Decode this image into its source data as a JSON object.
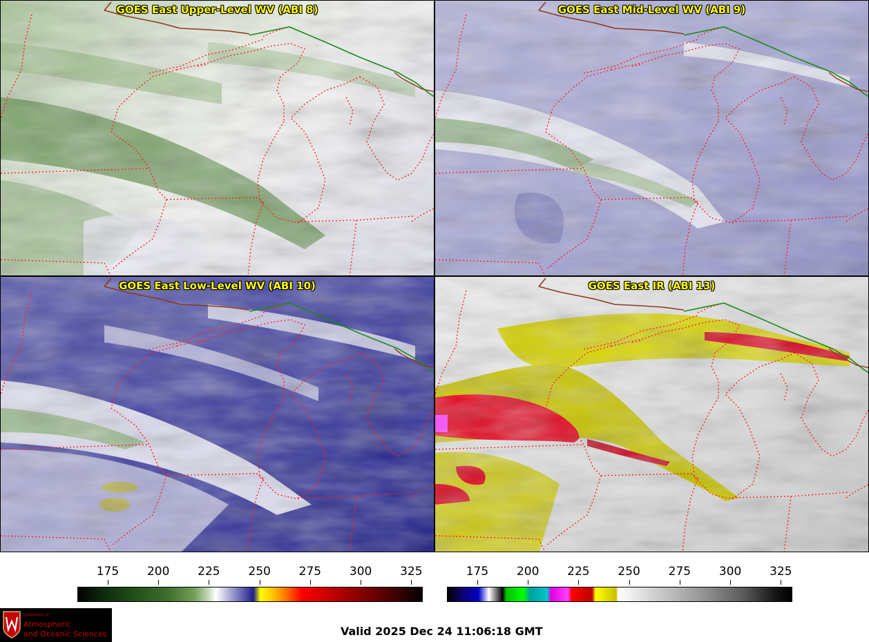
{
  "panels": [
    {
      "title": "GOES East Upper-Level WV (ABI 8)",
      "band": "ABI 8",
      "theme": "green-white"
    },
    {
      "title": "GOES East Mid-Level WV (ABI 9)",
      "band": "ABI 9",
      "theme": "white-purple"
    },
    {
      "title": "GOES East Low-Level WV (ABI 10)",
      "band": "ABI 10",
      "theme": "blue-white"
    },
    {
      "title": "GOES East IR (ABI 13)",
      "band": "ABI 13",
      "theme": "gray-yellow-red"
    }
  ],
  "colorbars": {
    "wv": {
      "ticks": [
        "175",
        "200",
        "225",
        "250",
        "275",
        "300",
        "325"
      ],
      "min": 160,
      "max": 330
    },
    "ir": {
      "ticks": [
        "175",
        "200",
        "225",
        "250",
        "275",
        "300",
        "325"
      ],
      "min": 160,
      "max": 330
    }
  },
  "logo": {
    "dept": "Department of",
    "line1": "Atmospheric",
    "line2": "and Oceanic Sciences"
  },
  "valid_time": "Valid 2025 Dec 24 11:06:18 GMT",
  "colors": {
    "border_state": "#ff2020",
    "border_country": "#1a8a1a",
    "title_text": "#ffff00"
  }
}
